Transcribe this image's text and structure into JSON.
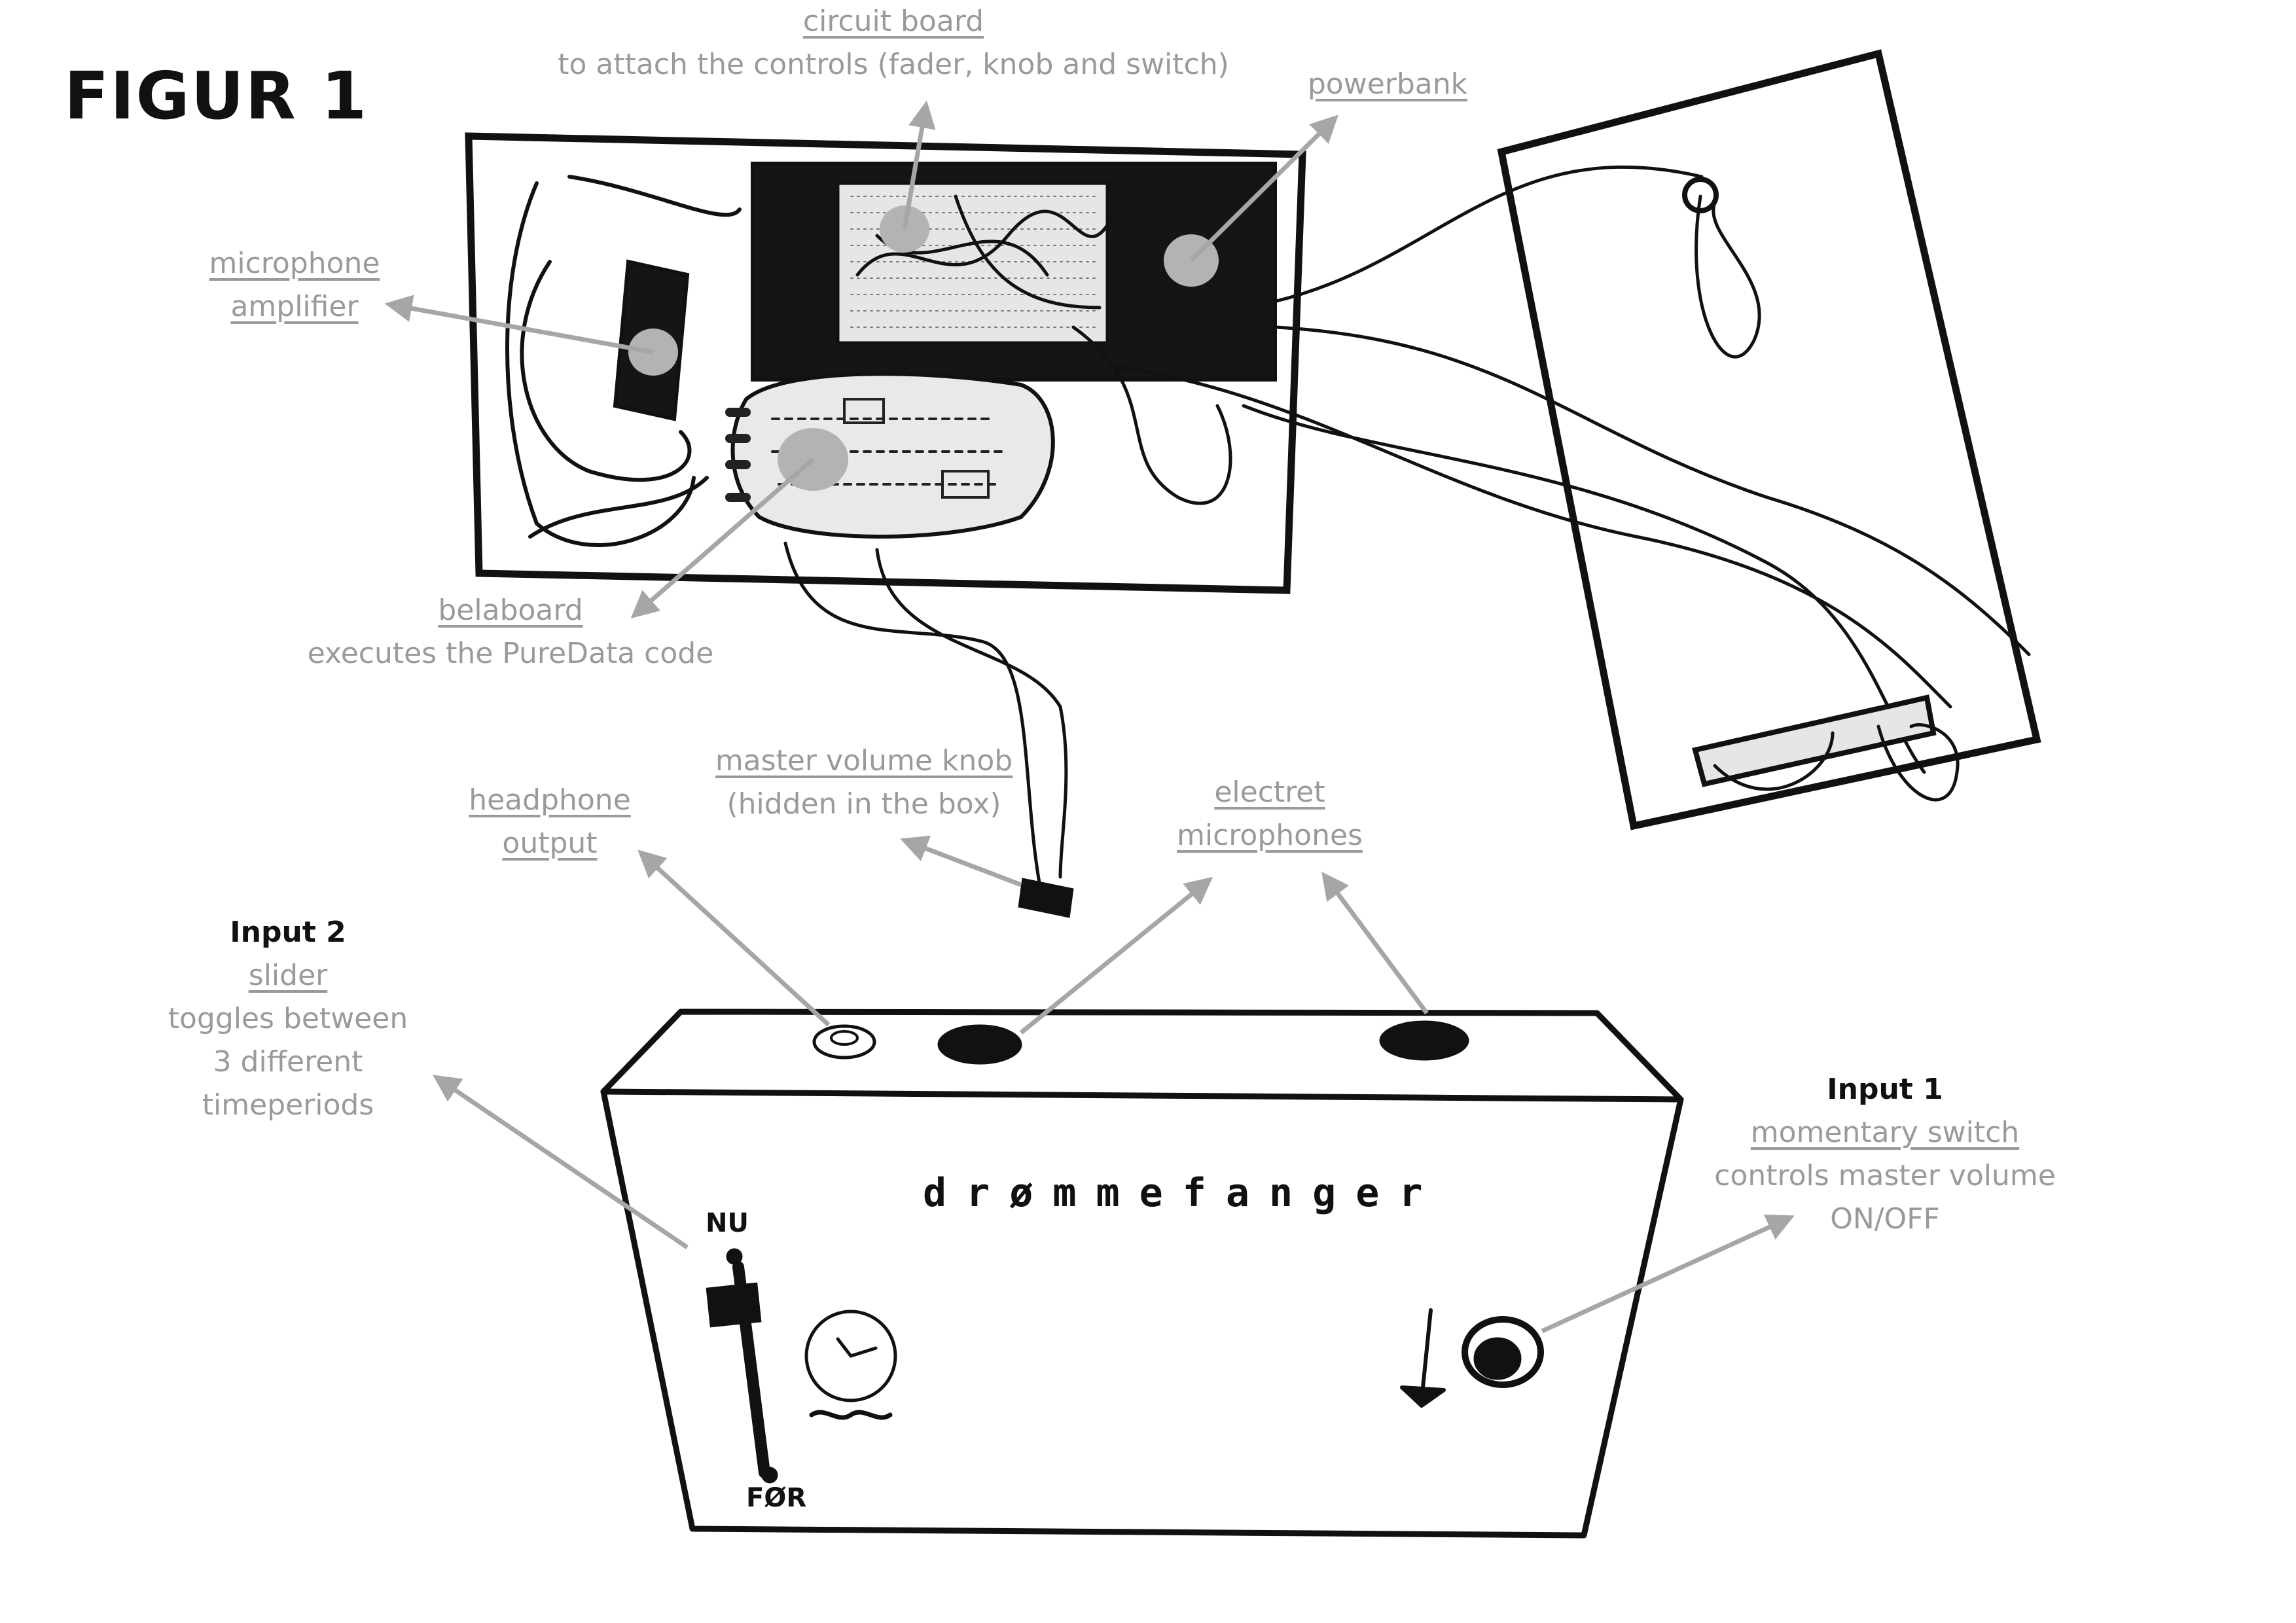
{
  "figure_title": "FIGUR 1",
  "brand_name": "drømmefanger",
  "slider_marks": {
    "top": "NU",
    "bottom": "FØR"
  },
  "labels": {
    "circuit_board": {
      "title": "circuit board",
      "desc": "to attach the controls (fader, knob and switch)"
    },
    "powerbank": {
      "title": "powerbank"
    },
    "mic_amplifier": {
      "title_1": "microphone",
      "title_2": "amplifier"
    },
    "belaboard": {
      "title": "belaboard",
      "desc": "executes the PureData code"
    },
    "headphone_output": {
      "title_1": "headphone",
      "title_2": "output"
    },
    "master_volume_knob": {
      "title": "master volume knob",
      "desc": "(hidden in the box)"
    },
    "electret_mics": {
      "title_1": "electret",
      "title_2": "microphones"
    },
    "input2": {
      "heading": "Input 2",
      "title": "slider",
      "desc_1": "toggles between",
      "desc_2": "3 different",
      "desc_3": "timeperiods"
    },
    "input1": {
      "heading": "Input 1",
      "title": "momentary switch",
      "desc_1": "controls master volume",
      "desc_2": "ON/OFF"
    }
  },
  "colors": {
    "ink": "#111111",
    "annotation": "#9a9a9a",
    "marker": "#b3b3b3",
    "background": "#ffffff"
  }
}
